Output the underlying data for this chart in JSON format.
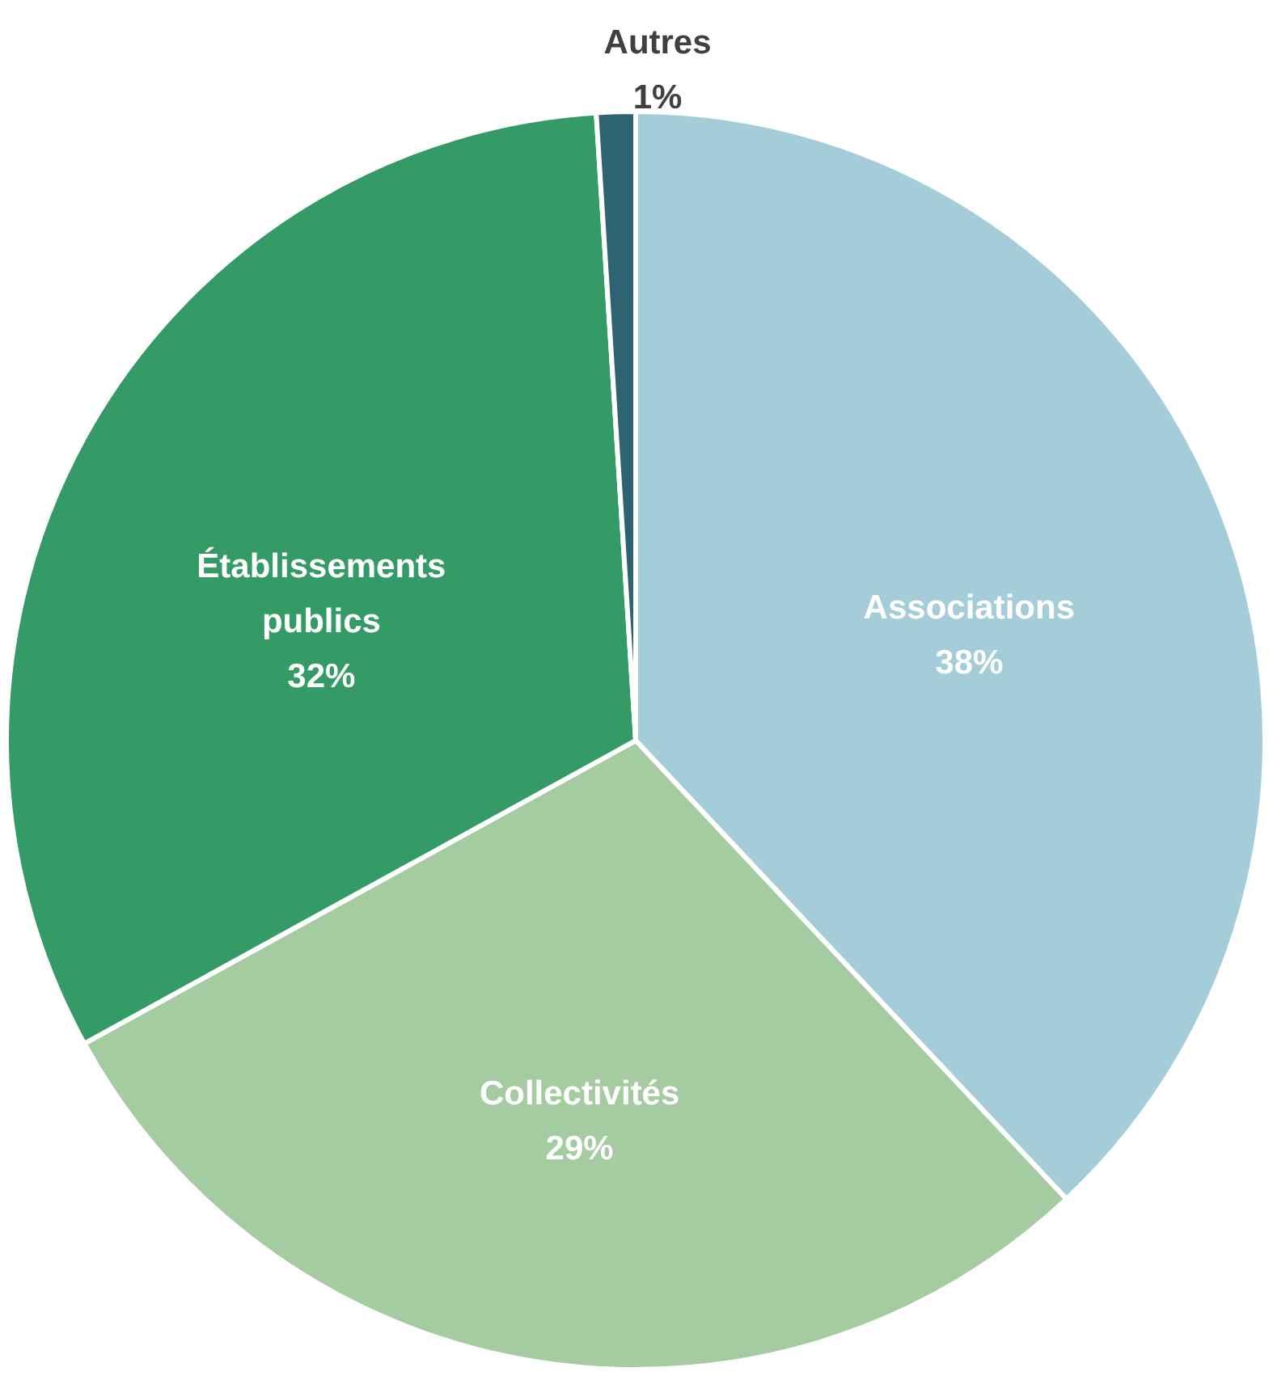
{
  "chart_data": {
    "type": "pie",
    "categories": [
      "Associations",
      "Collectivités",
      "Établissements publics",
      "Autres"
    ],
    "values": [
      38,
      29,
      32,
      1
    ],
    "colors": [
      "#a5cdd9",
      "#a5cba1",
      "#349a66",
      "#2e6373"
    ],
    "value_labels": [
      "38%",
      "29%",
      "32%",
      "1%"
    ]
  }
}
